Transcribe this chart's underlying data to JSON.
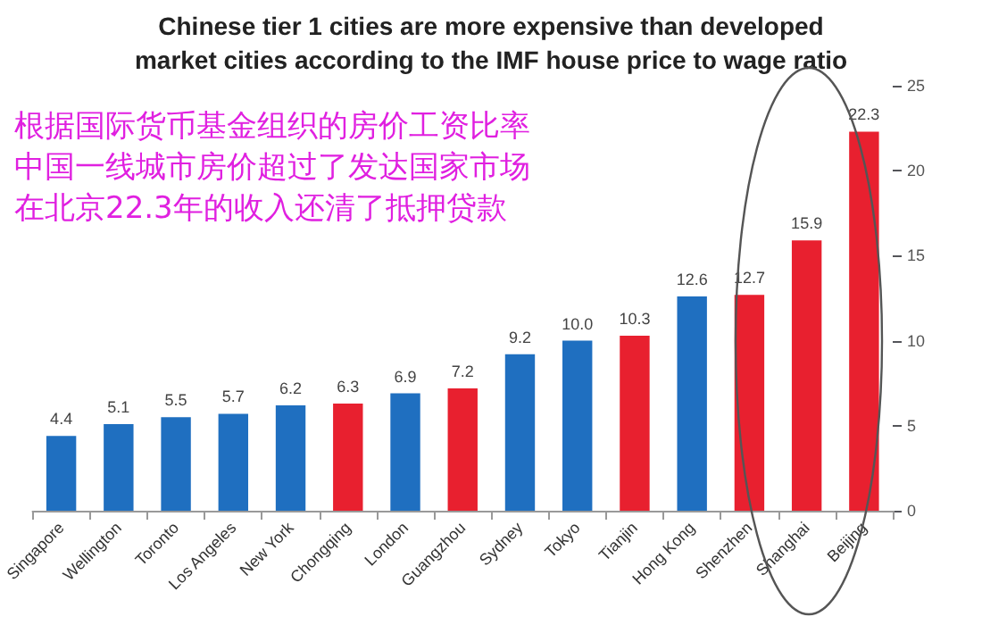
{
  "chart_data": {
    "type": "bar",
    "title": "Chinese tier 1 cities are more expensive than developed\nmarket cities according to the IMF house price to wage ratio",
    "annotations": [
      "根据国际货币基金组织的房价工资比率",
      "中国一线城市房价超过了发达国家市场",
      "在北京22.3年的收入还清了抵押贷款"
    ],
    "categories": [
      "Singapore",
      "Wellington",
      "Toronto",
      "Los Angeles",
      "New York",
      "Chongqing",
      "London",
      "Guangzhou",
      "Sydney",
      "Tokyo",
      "Tianjin",
      "Hong Kong",
      "Shenzhen",
      "Shanghai",
      "Beijing"
    ],
    "values": [
      4.4,
      5.1,
      5.5,
      5.7,
      6.2,
      6.3,
      6.9,
      7.2,
      9.2,
      10.0,
      10.3,
      12.6,
      12.7,
      15.9,
      22.3
    ],
    "colors": [
      "#1f6fc0",
      "#1f6fc0",
      "#1f6fc0",
      "#1f6fc0",
      "#1f6fc0",
      "#e8202f",
      "#1f6fc0",
      "#e8202f",
      "#1f6fc0",
      "#1f6fc0",
      "#e8202f",
      "#1f6fc0",
      "#e8202f",
      "#e8202f",
      "#e8202f"
    ],
    "value_labels": [
      "4.4",
      "5.1",
      "5.5",
      "5.7",
      "6.2",
      "6.3",
      "6.9",
      "7.2",
      "9.2",
      "10.0",
      "10.3",
      "12.6",
      "12.7",
      "15.9",
      "22.3"
    ],
    "ylim": [
      0,
      25
    ],
    "yticks": [
      0,
      5,
      10,
      15,
      20,
      25
    ]
  }
}
